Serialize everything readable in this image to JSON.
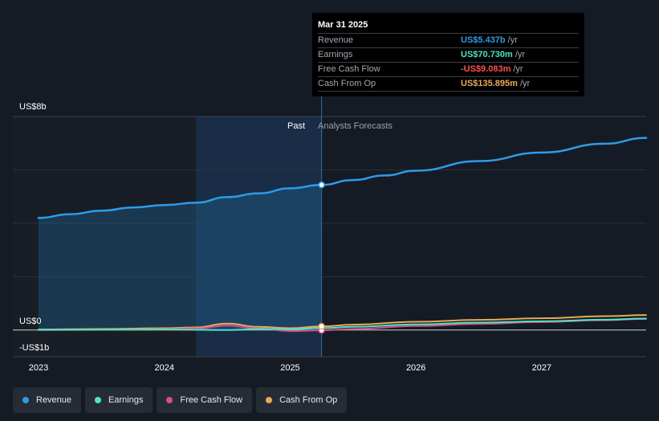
{
  "chart_data": {
    "type": "line",
    "y_unit_label_top": "US$8b",
    "y_unit_label_zero": "US$0",
    "y_unit_label_bottom": "-US$1b",
    "ylim": [
      -1,
      8
    ],
    "xlim": [
      2023,
      2027.83
    ],
    "x_ticks": [
      {
        "value": 2023,
        "label": "2023"
      },
      {
        "value": 2024,
        "label": "2024"
      },
      {
        "value": 2025,
        "label": "2025"
      },
      {
        "value": 2026,
        "label": "2026"
      },
      {
        "value": 2027,
        "label": "2027"
      }
    ],
    "past_label": "Past",
    "forecast_label": "Analysts Forecasts",
    "highlight_start": 2024.25,
    "past_end": 2025.25,
    "series": [
      {
        "name": "Revenue",
        "color": "#2e9be8",
        "x": [
          2023.0,
          2023.25,
          2023.5,
          2023.75,
          2024.0,
          2024.25,
          2024.5,
          2024.75,
          2025.0,
          2025.25,
          2025.5,
          2025.75,
          2026.0,
          2026.5,
          2027.0,
          2027.5,
          2027.83
        ],
        "y": [
          4.2,
          4.34,
          4.47,
          4.59,
          4.68,
          4.77,
          4.98,
          5.12,
          5.31,
          5.437,
          5.62,
          5.79,
          5.97,
          6.33,
          6.65,
          6.98,
          7.2
        ]
      },
      {
        "name": "Earnings",
        "color": "#4fe3c6",
        "x": [
          2023.0,
          2023.5,
          2024.0,
          2024.25,
          2024.5,
          2024.75,
          2025.0,
          2025.25,
          2025.5,
          2026.0,
          2026.5,
          2027.0,
          2027.5,
          2027.83
        ],
        "y": [
          0.01,
          0.015,
          0.02,
          0.01,
          0.0,
          0.04,
          0.03,
          0.07073,
          0.12,
          0.21,
          0.28,
          0.33,
          0.39,
          0.43
        ]
      },
      {
        "name": "Free Cash Flow",
        "color": "#d64f8d",
        "x": [
          2023.0,
          2023.5,
          2024.0,
          2024.25,
          2024.5,
          2024.75,
          2025.0,
          2025.25,
          2025.5,
          2026.0,
          2026.5,
          2027.0,
          2027.5,
          2027.83
        ],
        "y": [
          0.0,
          0.01,
          0.03,
          0.06,
          0.17,
          0.06,
          -0.04,
          -0.009083,
          0.04,
          0.15,
          0.23,
          0.3,
          0.37,
          0.42
        ]
      },
      {
        "name": "Cash From Op",
        "color": "#e9a95a",
        "x": [
          2023.0,
          2023.5,
          2024.0,
          2024.25,
          2024.5,
          2024.75,
          2025.0,
          2025.25,
          2025.5,
          2026.0,
          2026.5,
          2027.0,
          2027.5,
          2027.83
        ],
        "y": [
          0.02,
          0.04,
          0.07,
          0.1,
          0.24,
          0.12,
          0.07,
          0.135895,
          0.2,
          0.31,
          0.38,
          0.44,
          0.52,
          0.56
        ]
      }
    ],
    "marker_x": 2025.25
  },
  "tooltip": {
    "date": "Mar 31 2025",
    "rows": [
      {
        "label": "Revenue",
        "value": "US$5.437b",
        "unit": "/yr",
        "color": "#2e9be8"
      },
      {
        "label": "Earnings",
        "value": "US$70.730m",
        "unit": "/yr",
        "color": "#4fe3c6"
      },
      {
        "label": "Free Cash Flow",
        "value": "-US$9.083m",
        "unit": "/yr",
        "color": "#ff4f4f"
      },
      {
        "label": "Cash From Op",
        "value": "US$135.895m",
        "unit": "/yr",
        "color": "#e9a95a"
      }
    ]
  },
  "legend": [
    {
      "label": "Revenue",
      "color": "#2e9be8"
    },
    {
      "label": "Earnings",
      "color": "#4fe3c6"
    },
    {
      "label": "Free Cash Flow",
      "color": "#d64f8d"
    },
    {
      "label": "Cash From Op",
      "color": "#e9a95a"
    }
  ]
}
